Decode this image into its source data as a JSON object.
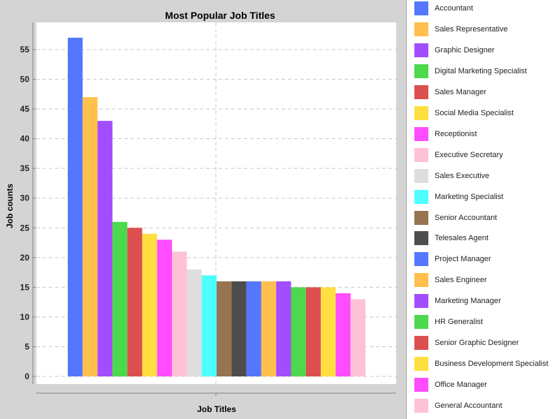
{
  "chart_data": {
    "type": "bar",
    "title": "Most Popular Job Titles",
    "xlabel": "Job Titles",
    "ylabel": "Job counts",
    "ylim": [
      0,
      59
    ],
    "yticks": [
      0,
      5,
      10,
      15,
      20,
      25,
      30,
      35,
      40,
      45,
      50,
      55
    ],
    "grid": true,
    "legend_position": "right",
    "categories": [
      "Accountant",
      "Sales Representative",
      "Graphic Designer",
      "Digital Marketing Specialist",
      "Sales Manager",
      "Social Media Specialist",
      "Receptionist",
      "Executive Secretary",
      "Sales Executive",
      "Marketing Specialist",
      "Senior Accountant",
      "Telesales Agent",
      "Project Manager",
      "Sales Engineer",
      "Marketing Manager",
      "HR Generalist",
      "Senior Graphic Designer",
      "Business Development Specialist",
      "Office Manager",
      "General Accountant"
    ],
    "values": [
      57,
      47,
      43,
      26,
      25,
      24,
      23,
      21,
      18,
      17,
      16,
      16,
      16,
      16,
      16,
      15,
      15,
      15,
      14,
      13
    ],
    "colors": [
      "#5577ff",
      "#ffc04d",
      "#a24dff",
      "#4cd94c",
      "#dd4f4f",
      "#ffdf3f",
      "#ff4cff",
      "#ffc2d4",
      "#dedede",
      "#4dffff",
      "#97734f",
      "#4d4d4d",
      "#5577ff",
      "#ffc04d",
      "#a24dff",
      "#4cd94c",
      "#dd4f4f",
      "#ffdf3f",
      "#ff4cff",
      "#ffc2d4"
    ]
  }
}
